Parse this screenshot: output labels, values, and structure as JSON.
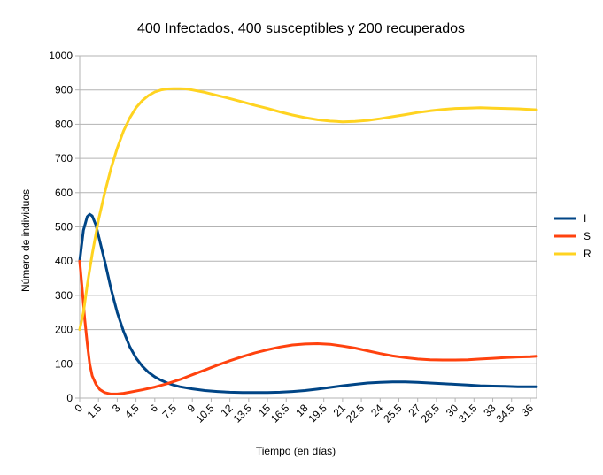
{
  "chart_data": {
    "type": "line",
    "title": "400 Infectados, 400 susceptibles y 200 recuperados",
    "xlabel": "Tiempo (en días)",
    "ylabel": "Número de individuos",
    "xlim": [
      0,
      36.5
    ],
    "ylim": [
      0,
      1000
    ],
    "x_ticks": [
      "0",
      "1.5",
      "3",
      "4.5",
      "6",
      "7.5",
      "9",
      "10.5",
      "12",
      "13.5",
      "15",
      "16.5",
      "18",
      "19.5",
      "21",
      "22.5",
      "24",
      "25.5",
      "27",
      "28.5",
      "30",
      "31.5",
      "33",
      "34.5",
      "36"
    ],
    "y_ticks": [
      "0",
      "100",
      "200",
      "300",
      "400",
      "500",
      "600",
      "700",
      "800",
      "900",
      "1000"
    ],
    "grid": true,
    "legend_position": "right",
    "series": [
      {
        "name": "I",
        "color": "#004586",
        "points": [
          [
            0,
            400
          ],
          [
            0.3,
            490
          ],
          [
            0.6,
            530
          ],
          [
            0.8,
            537
          ],
          [
            1.0,
            532
          ],
          [
            1.3,
            505
          ],
          [
            1.6,
            460
          ],
          [
            2.0,
            400
          ],
          [
            2.5,
            320
          ],
          [
            3.0,
            250
          ],
          [
            3.5,
            195
          ],
          [
            4.0,
            150
          ],
          [
            4.5,
            117
          ],
          [
            5.0,
            93
          ],
          [
            5.5,
            75
          ],
          [
            6.0,
            62
          ],
          [
            6.5,
            52
          ],
          [
            7.0,
            44
          ],
          [
            7.5,
            38
          ],
          [
            8.0,
            33
          ],
          [
            9.0,
            27
          ],
          [
            10.0,
            22
          ],
          [
            11.0,
            19
          ],
          [
            12.0,
            17
          ],
          [
            13.0,
            16
          ],
          [
            14.0,
            16
          ],
          [
            15.0,
            16
          ],
          [
            16.0,
            17
          ],
          [
            17.0,
            19
          ],
          [
            18.0,
            22
          ],
          [
            19.0,
            26
          ],
          [
            20.0,
            31
          ],
          [
            21.0,
            36
          ],
          [
            22.0,
            40
          ],
          [
            23.0,
            44
          ],
          [
            24.0,
            46
          ],
          [
            25.0,
            47
          ],
          [
            26.0,
            47
          ],
          [
            27.0,
            46
          ],
          [
            28.0,
            44
          ],
          [
            29.0,
            42
          ],
          [
            30.0,
            40
          ],
          [
            31.0,
            38
          ],
          [
            32.0,
            36
          ],
          [
            33.0,
            35
          ],
          [
            34.0,
            34
          ],
          [
            35.0,
            33
          ],
          [
            36.0,
            33
          ],
          [
            36.5,
            33
          ]
        ]
      },
      {
        "name": "S",
        "color": "#ff420e",
        "points": [
          [
            0,
            400
          ],
          [
            0.2,
            320
          ],
          [
            0.4,
            230
          ],
          [
            0.6,
            160
          ],
          [
            0.8,
            100
          ],
          [
            1.0,
            65
          ],
          [
            1.3,
            40
          ],
          [
            1.6,
            25
          ],
          [
            2.0,
            16
          ],
          [
            2.5,
            12
          ],
          [
            3.0,
            12
          ],
          [
            3.5,
            14
          ],
          [
            4.0,
            17
          ],
          [
            5.0,
            24
          ],
          [
            6.0,
            32
          ],
          [
            7.0,
            42
          ],
          [
            8.0,
            54
          ],
          [
            9.0,
            68
          ],
          [
            10.0,
            82
          ],
          [
            11.0,
            96
          ],
          [
            12.0,
            109
          ],
          [
            13.0,
            121
          ],
          [
            14.0,
            132
          ],
          [
            15.0,
            141
          ],
          [
            16.0,
            149
          ],
          [
            17.0,
            155
          ],
          [
            18.0,
            158
          ],
          [
            19.0,
            159
          ],
          [
            20.0,
            157
          ],
          [
            21.0,
            152
          ],
          [
            22.0,
            146
          ],
          [
            23.0,
            138
          ],
          [
            24.0,
            130
          ],
          [
            25.0,
            123
          ],
          [
            26.0,
            118
          ],
          [
            27.0,
            114
          ],
          [
            28.0,
            112
          ],
          [
            29.0,
            111
          ],
          [
            30.0,
            111
          ],
          [
            31.0,
            112
          ],
          [
            32.0,
            114
          ],
          [
            33.0,
            116
          ],
          [
            34.0,
            118
          ],
          [
            35.0,
            120
          ],
          [
            36.0,
            121
          ],
          [
            36.5,
            122
          ]
        ]
      },
      {
        "name": "R",
        "color": "#ffd320",
        "points": [
          [
            0,
            200
          ],
          [
            0.3,
            250
          ],
          [
            0.6,
            330
          ],
          [
            1.0,
            420
          ],
          [
            1.5,
            520
          ],
          [
            2.0,
            600
          ],
          [
            2.5,
            670
          ],
          [
            3.0,
            730
          ],
          [
            3.5,
            780
          ],
          [
            4.0,
            818
          ],
          [
            4.5,
            848
          ],
          [
            5.0,
            869
          ],
          [
            5.5,
            884
          ],
          [
            6.0,
            894
          ],
          [
            6.5,
            900
          ],
          [
            7.0,
            903
          ],
          [
            7.5,
            904
          ],
          [
            8.0,
            904
          ],
          [
            8.5,
            903
          ],
          [
            9.0,
            900
          ],
          [
            10.0,
            893
          ],
          [
            11.0,
            884
          ],
          [
            12.0,
            875
          ],
          [
            13.0,
            865
          ],
          [
            14.0,
            855
          ],
          [
            15.0,
            846
          ],
          [
            16.0,
            836
          ],
          [
            17.0,
            827
          ],
          [
            18.0,
            819
          ],
          [
            19.0,
            813
          ],
          [
            20.0,
            809
          ],
          [
            21.0,
            807
          ],
          [
            22.0,
            808
          ],
          [
            23.0,
            811
          ],
          [
            24.0,
            816
          ],
          [
            25.0,
            822
          ],
          [
            26.0,
            828
          ],
          [
            27.0,
            834
          ],
          [
            28.0,
            839
          ],
          [
            29.0,
            843
          ],
          [
            30.0,
            846
          ],
          [
            31.0,
            847
          ],
          [
            32.0,
            848
          ],
          [
            33.0,
            847
          ],
          [
            34.0,
            846
          ],
          [
            35.0,
            845
          ],
          [
            36.0,
            843
          ],
          [
            36.5,
            842
          ]
        ]
      }
    ]
  }
}
